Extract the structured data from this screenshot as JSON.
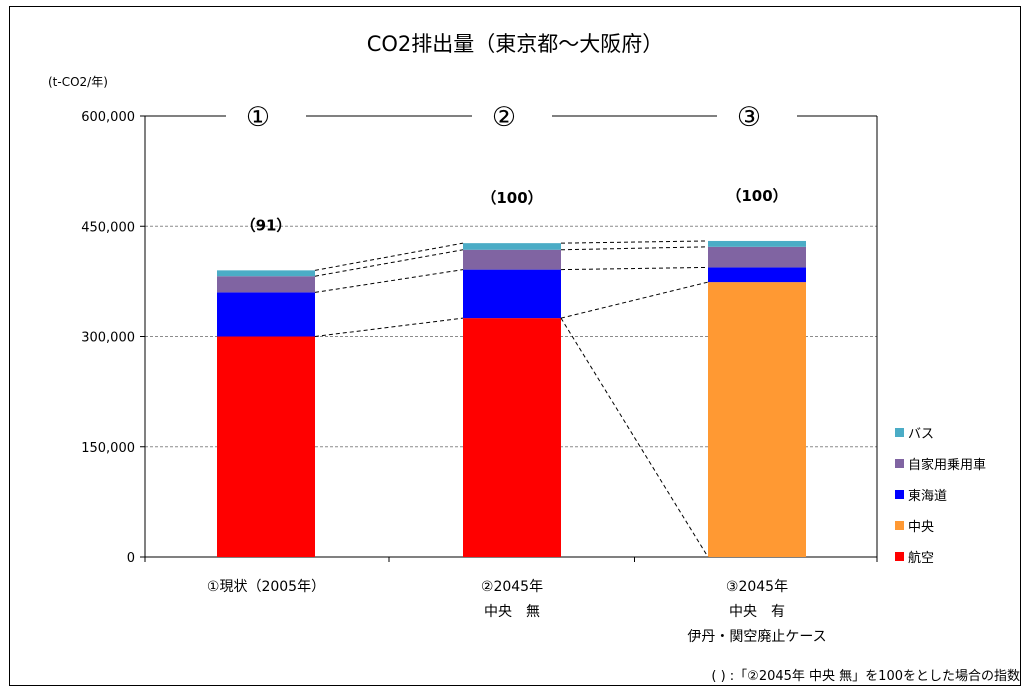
{
  "chart_data": {
    "type": "bar",
    "stacked": true,
    "title": "CO2排出量（東京都〜大阪府）",
    "unit_label": "(t-CO2/年)",
    "ylim": [
      0,
      600000
    ],
    "y_ticks": [
      "0",
      "150,000",
      "300,000",
      "450,000",
      "600,000"
    ],
    "y_tick_values": [
      0,
      150000,
      300000,
      450000,
      600000
    ],
    "grid": true,
    "legend_position": "right",
    "categories": [
      [
        "①現状（2005年）"
      ],
      [
        "②2045年",
        "中央　無"
      ],
      [
        "③2045年",
        "中央　有",
        "伊丹・関空廃止ケース"
      ]
    ],
    "case_markers": [
      "①",
      "②",
      "③"
    ],
    "index_labels": [
      "（91）",
      "（100）",
      "（100）"
    ],
    "series": [
      {
        "name": "航空",
        "color": "#ff0000",
        "values": [
          300000,
          325000,
          0
        ]
      },
      {
        "name": "中央",
        "color": "#ff9933",
        "values": [
          0,
          0,
          374000
        ]
      },
      {
        "name": "東海道",
        "color": "#0000ff",
        "values": [
          60000,
          66000,
          20000
        ]
      },
      {
        "name": "自家用乗用車",
        "color": "#8064a2",
        "values": [
          22000,
          27000,
          28000
        ]
      },
      {
        "name": "バス",
        "color": "#4bacc6",
        "values": [
          8000,
          9000,
          8000
        ]
      }
    ],
    "legend_order": [
      "バス",
      "自家用乗用車",
      "東海道",
      "中央",
      "航空"
    ],
    "footnote": "( ) :「②2045年 中央 無」を100をとした場合の指数"
  }
}
